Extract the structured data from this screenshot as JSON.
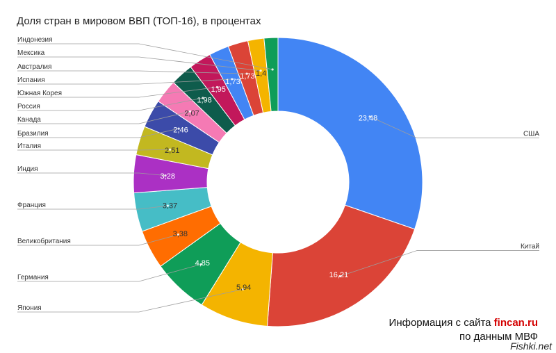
{
  "chart_data": {
    "type": "pie",
    "donut": true,
    "title": "Доля стран в мировом ВВП (ТОП-16), в процентах",
    "slices": [
      {
        "label": "США",
        "value": 23.48,
        "text": "23,48",
        "color": "#4285f4",
        "label_color": "#ffffff"
      },
      {
        "label": "Китай",
        "value": 16.21,
        "text": "16,21",
        "color": "#db4437",
        "label_color": "#ffffff"
      },
      {
        "label": "Япония",
        "value": 5.94,
        "text": "5,94",
        "color": "#f4b400",
        "label_color": "#333333"
      },
      {
        "label": "Германия",
        "value": 4.85,
        "text": "4,85",
        "color": "#0f9d58",
        "label_color": "#ffffff"
      },
      {
        "label": "Великобритания",
        "value": 3.38,
        "text": "3,38",
        "color": "#ff6d01",
        "label_color": "#333333"
      },
      {
        "label": "Франция",
        "value": 3.37,
        "text": "3,37",
        "color": "#46bdc6",
        "label_color": "#333333"
      },
      {
        "label": "Индия",
        "value": 3.28,
        "text": "3,28",
        "color": "#ab30c4",
        "label_color": "#ffffff"
      },
      {
        "label": "Италия",
        "value": 2.51,
        "text": "2,51",
        "color": "#c2b820",
        "label_color": "#333333"
      },
      {
        "label": "Бразилия",
        "value": 2.46,
        "text": "2,46",
        "color": "#3c4ba9",
        "label_color": "#ffffff"
      },
      {
        "label": "Канада",
        "value": 2.07,
        "text": "2,07",
        "color": "#f57ab4",
        "label_color": "#333333"
      },
      {
        "label": "Россия",
        "value": 1.98,
        "text": "1,98",
        "color": "#0e5c4c",
        "label_color": "#ffffff"
      },
      {
        "label": "Южная Корея",
        "value": 1.95,
        "text": "1,95",
        "color": "#c2185b",
        "label_color": "#ffffff"
      },
      {
        "label": "Испания",
        "value": 1.73,
        "text": "1,73",
        "color": "#4285f4",
        "label_color": "#ffffff"
      },
      {
        "label": "Австралия",
        "value": 1.73,
        "text": "1,73",
        "color": "#db4437",
        "label_color": "#ffffff"
      },
      {
        "label": "Мексика",
        "value": 1.4,
        "text": "1,4",
        "color": "#f4b400",
        "label_color": "#333333"
      },
      {
        "label": "Индонезия",
        "value": 1.2,
        "text": "",
        "color": "#0f9d58",
        "label_color": "#ffffff"
      }
    ],
    "legend_placement": "callout-lines"
  },
  "source": {
    "line1_prefix": "Информация с сайта ",
    "line1_brand": "fincan.ru",
    "line2": "по данным МВФ"
  },
  "watermark": "Fishki.net"
}
